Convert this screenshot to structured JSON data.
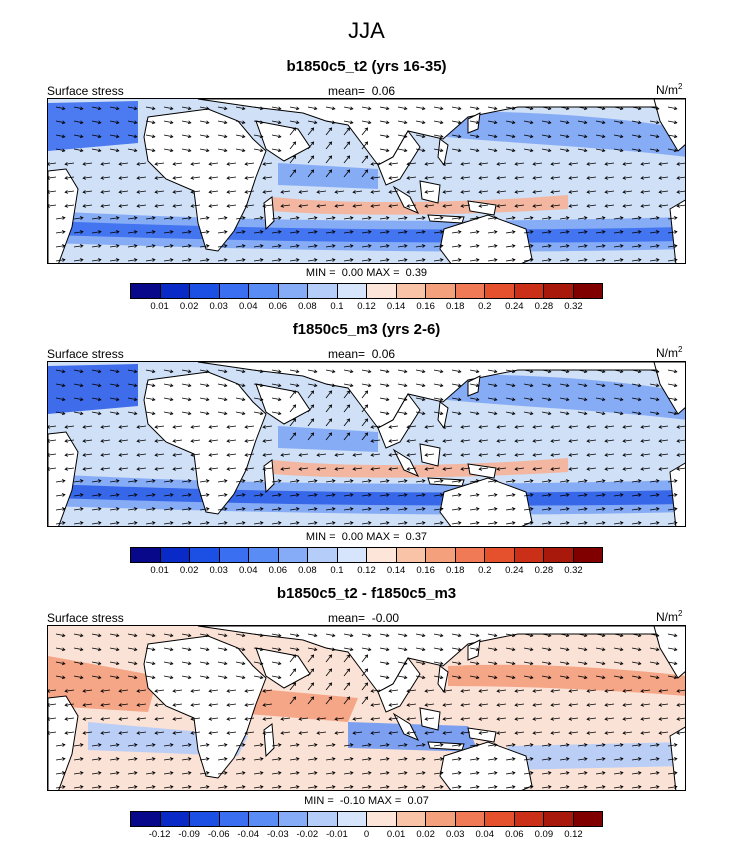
{
  "figure": {
    "title": "JJA"
  },
  "panels": [
    {
      "title": "b1850c5_t2 (yrs 16-35)",
      "left_label": "Surface stress",
      "mean_label": "mean=",
      "mean_value": "0.06",
      "units": "N/m",
      "units_exp": "2",
      "min_label": "MIN =",
      "min_value": "0.00",
      "max_label": "MAX =",
      "max_value": "0.39",
      "colorbar": {
        "colors": [
          "#08088a",
          "#0a2ac8",
          "#1c4fe4",
          "#3a6ff2",
          "#5a8cf5",
          "#86acf7",
          "#b4cdf9",
          "#d6e5fb",
          "#fde6d9",
          "#f9c3a7",
          "#f5a07c",
          "#f07a55",
          "#e5512d",
          "#cc2f17",
          "#a8180b",
          "#800000"
        ],
        "labels": [
          "0.01",
          "0.02",
          "0.03",
          "0.04",
          "0.06",
          "0.08",
          "0.1",
          "0.12",
          "0.14",
          "0.16",
          "0.18",
          "0.2",
          "0.24",
          "0.28",
          "0.32"
        ]
      },
      "map_colors": {
        "ocean": "#cfe0f7",
        "strong": "#3d6ff0",
        "mid": "#7ea6f5",
        "warm": "#f6b196",
        "land": "#ffffff"
      }
    },
    {
      "title": "f1850c5_m3 (yrs 2-6)",
      "left_label": "Surface stress",
      "mean_label": "mean=",
      "mean_value": "0.06",
      "units": "N/m",
      "units_exp": "2",
      "min_label": "MIN =",
      "min_value": "0.00",
      "max_label": "MAX =",
      "max_value": "0.37",
      "colorbar": {
        "colors": [
          "#08088a",
          "#0a2ac8",
          "#1c4fe4",
          "#3a6ff2",
          "#5a8cf5",
          "#86acf7",
          "#b4cdf9",
          "#d6e5fb",
          "#fde6d9",
          "#f9c3a7",
          "#f5a07c",
          "#f07a55",
          "#e5512d",
          "#cc2f17",
          "#a8180b",
          "#800000"
        ],
        "labels": [
          "0.01",
          "0.02",
          "0.03",
          "0.04",
          "0.06",
          "0.08",
          "0.1",
          "0.12",
          "0.14",
          "0.16",
          "0.18",
          "0.2",
          "0.24",
          "0.28",
          "0.32"
        ]
      },
      "map_colors": {
        "ocean": "#cfe0f7",
        "strong": "#2f5fe8",
        "mid": "#7ea6f5",
        "warm": "#f6b196",
        "land": "#ffffff"
      }
    },
    {
      "title": "b1850c5_t2 - f1850c5_m3",
      "left_label": "Surface stress",
      "mean_label": "mean=",
      "mean_value": "-0.00",
      "units": "N/m",
      "units_exp": "2",
      "min_label": "MIN =",
      "min_value": "-0.10",
      "max_label": "MAX =",
      "max_value": "0.07",
      "colorbar": {
        "colors": [
          "#08088a",
          "#0a2ac8",
          "#1c4fe4",
          "#3a6ff2",
          "#5a8cf5",
          "#86acf7",
          "#b4cdf9",
          "#d6e5fb",
          "#fde6d9",
          "#f9c3a7",
          "#f5a07c",
          "#f07a55",
          "#e5512d",
          "#cc2f17",
          "#a8180b",
          "#800000"
        ],
        "labels": [
          "-0.12",
          "-0.09",
          "-0.06",
          "-0.04",
          "-0.03",
          "-0.02",
          "-0.01",
          "0",
          "0.01",
          "0.02",
          "0.03",
          "0.04",
          "0.06",
          "0.09",
          "0.12"
        ]
      },
      "map_colors": {
        "ocean": "#fbe2d6",
        "strong": "#6f98f3",
        "mid": "#b4cdf9",
        "warm": "#f3a07e",
        "land": "#ffffff"
      }
    }
  ]
}
